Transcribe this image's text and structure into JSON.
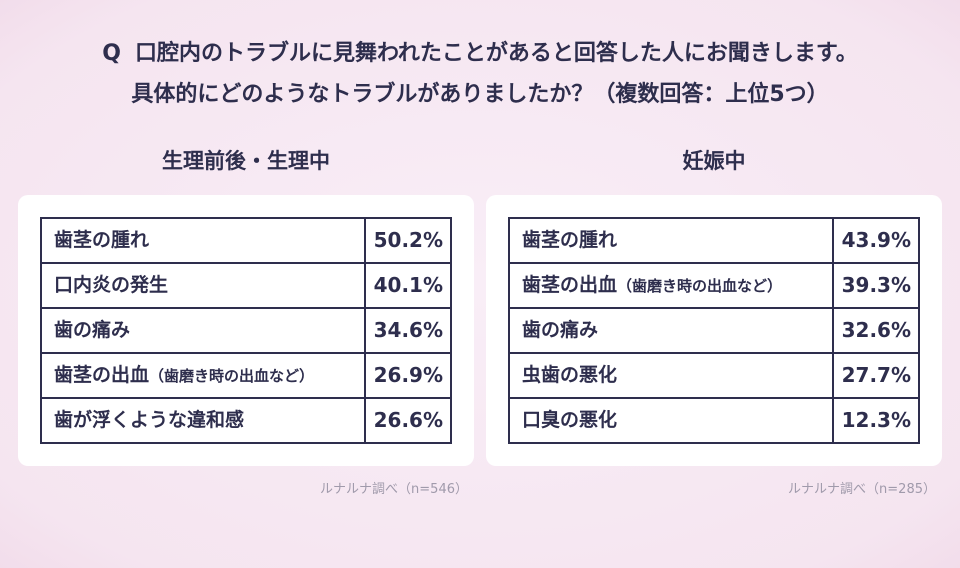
{
  "colors": {
    "background": "#f6e7f2",
    "text": "#2e2e4d",
    "card": "#ffffff",
    "table_border": "#2e2e4d",
    "source_text": "#a09aab"
  },
  "question": {
    "prefix": "Q",
    "line1": "口腔内のトラブルに見舞われたことがあると回答した人にお聞きします。",
    "line2": "具体的にどのようなトラブルがありましたか？（複数回答：上位5つ）"
  },
  "chart_data": [
    {
      "type": "table",
      "title": "生理前後・生理中",
      "source": "ルナルナ調べ（n=546）",
      "n": 546,
      "rows": [
        {
          "label": "歯茎の腫れ",
          "note": "",
          "percent": 50.2,
          "value": "50.2%"
        },
        {
          "label": "口内炎の発生",
          "note": "",
          "percent": 40.1,
          "value": "40.1%"
        },
        {
          "label": "歯の痛み",
          "note": "",
          "percent": 34.6,
          "value": "34.6%"
        },
        {
          "label": "歯茎の出血",
          "note": "（歯磨き時の出血など）",
          "percent": 26.9,
          "value": "26.9%"
        },
        {
          "label": "歯が浮くような違和感",
          "note": "",
          "percent": 26.6,
          "value": "26.6%"
        }
      ]
    },
    {
      "type": "table",
      "title": "妊娠中",
      "source": "ルナルナ調べ（n=285）",
      "n": 285,
      "rows": [
        {
          "label": "歯茎の腫れ",
          "note": "",
          "percent": 43.9,
          "value": "43.9%"
        },
        {
          "label": "歯茎の出血",
          "note": "（歯磨き時の出血など）",
          "percent": 39.3,
          "value": "39.3%"
        },
        {
          "label": "歯の痛み",
          "note": "",
          "percent": 32.6,
          "value": "32.6%"
        },
        {
          "label": "虫歯の悪化",
          "note": "",
          "percent": 27.7,
          "value": "27.7%"
        },
        {
          "label": "口臭の悪化",
          "note": "",
          "percent": 12.3,
          "value": "12.3%"
        }
      ]
    }
  ]
}
